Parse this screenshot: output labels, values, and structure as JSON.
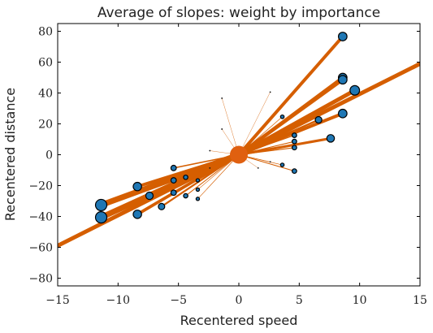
{
  "chart_data": {
    "type": "scatter",
    "title": "Average of slopes: weight by importance",
    "xlabel": "Recentered speed",
    "ylabel": "Recentered distance",
    "xlim": [
      -15,
      15
    ],
    "ylim": [
      -85,
      85
    ],
    "xticks": [
      -15,
      -10,
      -5,
      0,
      5,
      10,
      15
    ],
    "xtick_labels": [
      "−15",
      "−10",
      "−5",
      "0",
      "5",
      "10",
      "15"
    ],
    "yticks": [
      -80,
      -60,
      -40,
      -20,
      0,
      20,
      40,
      60,
      80
    ],
    "ytick_labels": [
      "−80",
      "−60",
      "−40",
      "−20",
      "0",
      "20",
      "40",
      "60",
      "80"
    ],
    "grid": false,
    "legend": "none",
    "colors": {
      "points": "#1f77b4",
      "lines": "#d55e00",
      "center": "#e06010",
      "frame": "#000000"
    },
    "average_slope": 3.93,
    "center": [
      0,
      0
    ],
    "points": [
      [
        8.6,
        76.6
      ],
      [
        8.6,
        50.0
      ],
      [
        8.6,
        48.6
      ],
      [
        9.6,
        41.7
      ],
      [
        8.6,
        26.7
      ],
      [
        6.6,
        22.6
      ],
      [
        7.6,
        10.6
      ],
      [
        4.6,
        12.6
      ],
      [
        4.6,
        8.6
      ],
      [
        4.6,
        4.6
      ],
      [
        3.6,
        24.6
      ],
      [
        2.6,
        40.6
      ],
      [
        -11.4,
        -32.6
      ],
      [
        -11.4,
        -40.6
      ],
      [
        -8.4,
        -20.6
      ],
      [
        -8.4,
        -38.6
      ],
      [
        -7.4,
        -26.6
      ],
      [
        -6.4,
        -33.6
      ],
      [
        -5.4,
        -8.6
      ],
      [
        -5.4,
        -16.6
      ],
      [
        -5.4,
        -24.6
      ],
      [
        -4.4,
        -14.6
      ],
      [
        -4.4,
        -26.6
      ],
      [
        -3.4,
        -16.6
      ],
      [
        -3.4,
        -22.6
      ],
      [
        -3.4,
        -28.6
      ],
      [
        -2.4,
        -8.6
      ],
      [
        -2.4,
        2.6
      ],
      [
        -1.4,
        16.6
      ],
      [
        -1.4,
        36.6
      ],
      [
        1.6,
        -8.6
      ],
      [
        2.6,
        -4.6
      ],
      [
        4.6,
        -10.6
      ],
      [
        3.6,
        -6.6
      ]
    ]
  }
}
